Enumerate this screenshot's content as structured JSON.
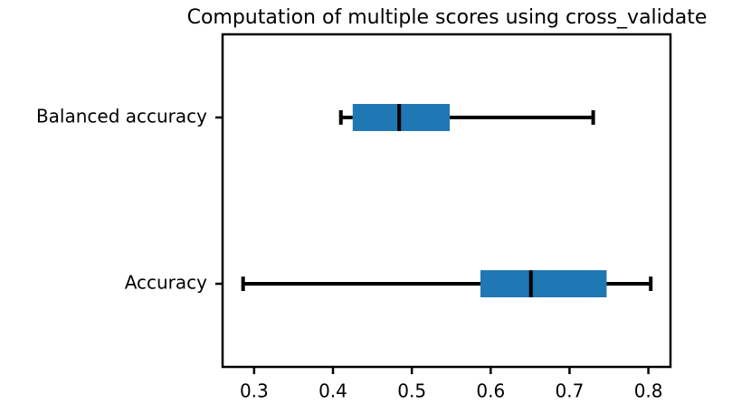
{
  "chart_data": {
    "type": "box",
    "title": "Computation of multiple scores using cross_validate",
    "categories": [
      "Accuracy",
      "Balanced accuracy"
    ],
    "boxes": [
      {
        "low": 0.286,
        "q1": 0.587,
        "median": 0.651,
        "q3": 0.747,
        "high": 0.803
      },
      {
        "low": 0.41,
        "q1": 0.425,
        "median": 0.484,
        "q3": 0.548,
        "high": 0.73
      }
    ],
    "color": "#1f77b4",
    "orientation": "horizontal",
    "xlim": [
      0.26,
      0.828
    ],
    "xticks": [
      0.3,
      0.4,
      0.5,
      0.6,
      0.7,
      0.8
    ]
  }
}
